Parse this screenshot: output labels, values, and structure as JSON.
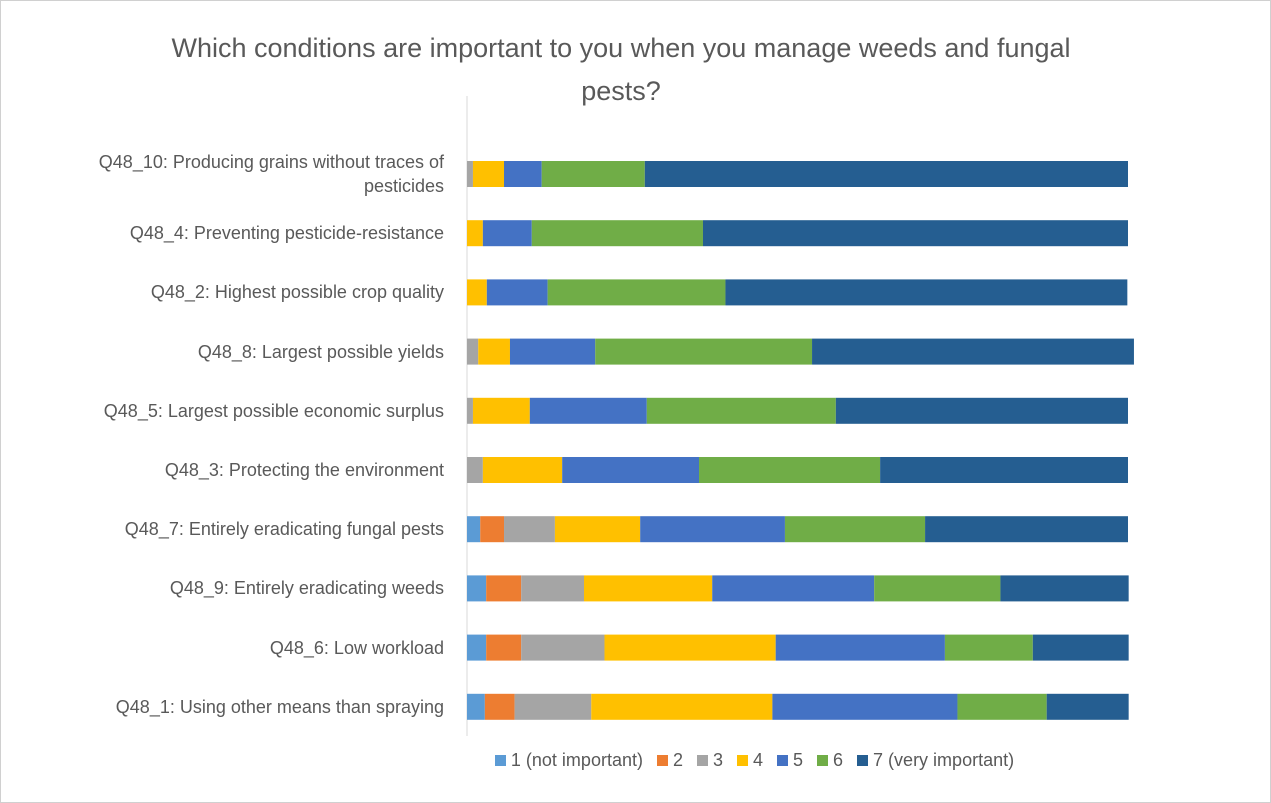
{
  "chart_data": {
    "type": "stacked_bar_horizontal",
    "title": "Which conditions are important to you when you manage weeds and fungal pests?",
    "categories": [
      "Q48_10: Producing grains without traces of pesticides",
      "Q48_4: Preventing pesticide-resistance",
      "Q48_2: Highest possible crop quality",
      "Q48_8: Largest possible yields",
      "Q48_5: Largest possible economic surplus",
      "Q48_3: Protecting the environment",
      "Q48_7: Entirely eradicating fungal pests",
      "Q48_9: Entirely eradicating weeds",
      "Q48_6: Low workload",
      "Q48_1: Using other means than spraying"
    ],
    "xlim": [
      0,
      100
    ],
    "legend": "bottom",
    "series": [
      {
        "name": "1 (not important)",
        "color": "#5b9bd5",
        "values": [
          0,
          0,
          0,
          0,
          0,
          0,
          2.0,
          2.9,
          2.9,
          2.7
        ]
      },
      {
        "name": "2",
        "color": "#ed7d31",
        "values": [
          0,
          0,
          0,
          0,
          0,
          0,
          3.6,
          5.3,
          5.3,
          4.5
        ]
      },
      {
        "name": "3",
        "color": "#a5a5a5",
        "values": [
          0.9,
          0,
          0,
          1.7,
          0.9,
          2.4,
          7.7,
          9.5,
          12.6,
          11.6
        ]
      },
      {
        "name": "4",
        "color": "#ffc000",
        "values": [
          4.7,
          2.4,
          3.0,
          4.8,
          8.6,
          12.0,
          12.9,
          19.4,
          25.9,
          27.4
        ]
      },
      {
        "name": "5",
        "color": "#4472c4",
        "values": [
          5.7,
          7.4,
          9.2,
          12.9,
          17.7,
          20.7,
          21.9,
          24.5,
          25.6,
          28.0
        ]
      },
      {
        "name": "6",
        "color": "#70ad47",
        "values": [
          15.6,
          25.9,
          26.9,
          32.8,
          28.6,
          27.4,
          21.2,
          19.1,
          13.3,
          13.5
        ]
      },
      {
        "name": "7 (very important)",
        "color": "#255e91",
        "values": [
          73.1,
          64.3,
          60.8,
          48.7,
          44.2,
          37.5,
          30.7,
          19.4,
          14.5,
          12.4
        ]
      }
    ]
  }
}
